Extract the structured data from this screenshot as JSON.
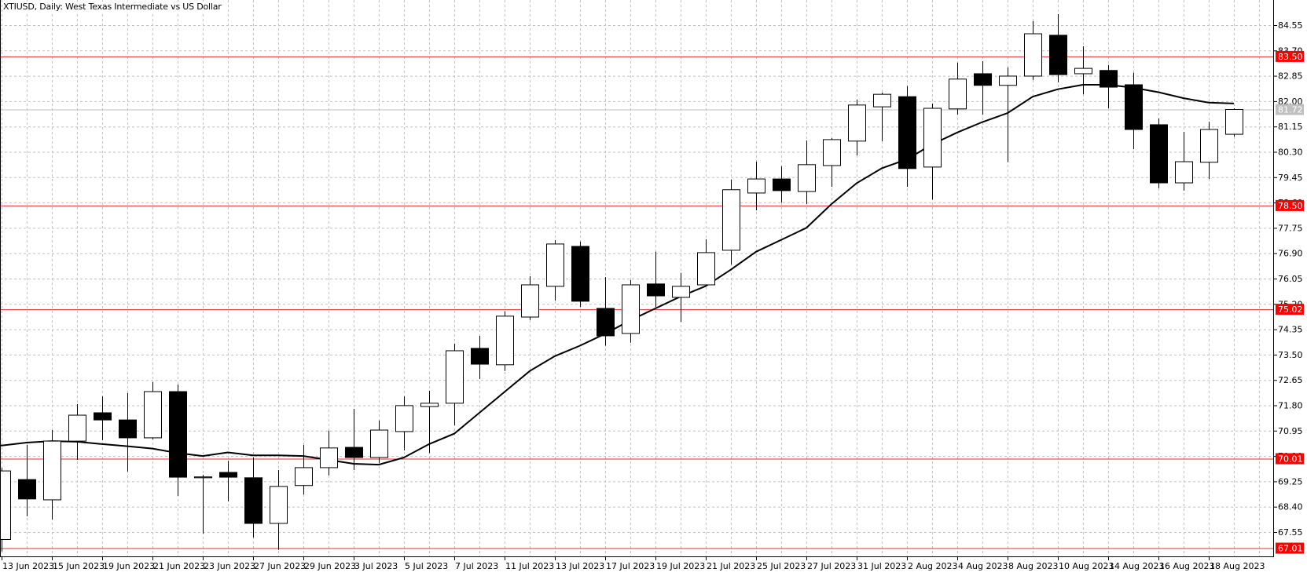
{
  "window": {
    "title": "XTIUSD, Daily:  West Texas Intermediate vs US Dollar"
  },
  "colors": {
    "background": "#ffffff",
    "grid": "#c0c0c0",
    "candle_up_fill": "#ffffff",
    "candle_down_fill": "#000000",
    "candle_outline": "#000000",
    "moving_average": "#000000",
    "level_line": "#e03030",
    "level_label_bg": "#ff0000",
    "level_label_text": "#ffffff",
    "current_price_line": "#c0c0c0",
    "current_price_label_bg": "#c0c0c0",
    "axis": "#000000"
  },
  "price_axis": {
    "ticks": [
      "84.55",
      "83.70",
      "82.85",
      "82.00",
      "81.15",
      "80.30",
      "79.45",
      "78.60",
      "77.75",
      "76.90",
      "76.05",
      "75.20",
      "74.35",
      "73.50",
      "72.65",
      "71.80",
      "70.95",
      "70.10",
      "69.25",
      "68.40",
      "67.55"
    ]
  },
  "time_axis": {
    "labels": [
      {
        "label": "13 Jun 2023",
        "bar": 0
      },
      {
        "label": "15 Jun 2023",
        "bar": 2
      },
      {
        "label": "19 Jun 2023",
        "bar": 4
      },
      {
        "label": "21 Jun 2023",
        "bar": 6
      },
      {
        "label": "23 Jun 2023",
        "bar": 8
      },
      {
        "label": "27 Jun 2023",
        "bar": 10
      },
      {
        "label": "29 Jun 2023",
        "bar": 12
      },
      {
        "label": "3 Jul 2023",
        "bar": 14
      },
      {
        "label": "5 Jul 2023",
        "bar": 16
      },
      {
        "label": "7 Jul 2023",
        "bar": 18
      },
      {
        "label": "11 Jul 2023",
        "bar": 20
      },
      {
        "label": "13 Jul 2023",
        "bar": 22
      },
      {
        "label": "17 Jul 2023",
        "bar": 24
      },
      {
        "label": "19 Jul 2023",
        "bar": 26
      },
      {
        "label": "21 Jul 2023",
        "bar": 28
      },
      {
        "label": "25 Jul 2023",
        "bar": 30
      },
      {
        "label": "27 Jul 2023",
        "bar": 32
      },
      {
        "label": "31 Jul 2023",
        "bar": 34
      },
      {
        "label": "2 Aug 2023",
        "bar": 36
      },
      {
        "label": "4 Aug 2023",
        "bar": 38
      },
      {
        "label": "8 Aug 2023",
        "bar": 40
      },
      {
        "label": "10 Aug 2023",
        "bar": 42
      },
      {
        "label": "14 Aug 2023",
        "bar": 44
      },
      {
        "label": "16 Aug 2023",
        "bar": 46
      },
      {
        "label": "18 Aug 2023",
        "bar": 48
      }
    ]
  },
  "levels": [
    {
      "price": 83.5,
      "label": "83.50",
      "kind": "resistance"
    },
    {
      "price": 78.5,
      "label": "78.50",
      "kind": "level"
    },
    {
      "price": 75.02,
      "label": "75.02",
      "kind": "level"
    },
    {
      "price": 70.01,
      "label": "70.01",
      "kind": "level"
    },
    {
      "price": 67.01,
      "label": "67.01",
      "kind": "support"
    }
  ],
  "current_price": {
    "price": 81.72,
    "label": "81.72"
  },
  "chart_data": {
    "type": "candlestick",
    "title": "XTIUSD, Daily:  West Texas Intermediate vs US Dollar",
    "symbol": "XTIUSD",
    "timeframe": "Daily",
    "xlabel": "",
    "ylabel": "",
    "ylim": [
      66.7,
      85.3
    ],
    "grid": true,
    "y_ticks": [
      84.55,
      83.7,
      82.85,
      82.0,
      81.15,
      80.3,
      79.45,
      78.6,
      77.75,
      76.9,
      76.05,
      75.2,
      74.35,
      73.5,
      72.65,
      71.8,
      70.95,
      70.1,
      69.25,
      68.4,
      67.55
    ],
    "horizontal_levels": [
      83.5,
      78.5,
      75.02,
      70.01,
      67.01
    ],
    "current_price": 81.72,
    "candles": [
      {
        "date": "13 Jun 2023",
        "o": 67.3,
        "h": 69.7,
        "l": 66.9,
        "c": 69.6
      },
      {
        "date": "14 Jun 2023",
        "o": 69.31,
        "h": 70.47,
        "l": 68.08,
        "c": 68.66
      },
      {
        "date": "15 Jun 2023",
        "o": 68.63,
        "h": 70.97,
        "l": 67.97,
        "c": 70.6
      },
      {
        "date": "16 Jun 2023",
        "o": 70.6,
        "h": 71.84,
        "l": 69.97,
        "c": 71.47
      },
      {
        "date": "19 Jun 2023",
        "o": 71.55,
        "h": 72.1,
        "l": 70.63,
        "c": 71.31
      },
      {
        "date": "20 Jun 2023",
        "o": 71.31,
        "h": 72.21,
        "l": 69.58,
        "c": 70.71
      },
      {
        "date": "21 Jun 2023",
        "o": 70.71,
        "h": 72.58,
        "l": 70.66,
        "c": 72.26
      },
      {
        "date": "22 Jun 2023",
        "o": 72.26,
        "h": 72.5,
        "l": 68.76,
        "c": 69.39
      },
      {
        "date": "23 Jun 2023",
        "o": 69.37,
        "h": 69.47,
        "l": 67.5,
        "c": 69.4
      },
      {
        "date": "26 Jun 2023",
        "o": 69.55,
        "h": 69.94,
        "l": 68.58,
        "c": 69.39
      },
      {
        "date": "27 Jun 2023",
        "o": 69.37,
        "h": 70.05,
        "l": 67.37,
        "c": 67.84
      },
      {
        "date": "28 Jun 2023",
        "o": 67.84,
        "h": 69.63,
        "l": 66.95,
        "c": 69.08
      },
      {
        "date": "29 Jun 2023",
        "o": 69.11,
        "h": 70.47,
        "l": 68.81,
        "c": 69.71
      },
      {
        "date": "30 Jun 2023",
        "o": 69.71,
        "h": 70.95,
        "l": 69.45,
        "c": 70.37
      },
      {
        "date": "3 Jul 2023",
        "o": 70.39,
        "h": 71.68,
        "l": 69.63,
        "c": 70.05
      },
      {
        "date": "4 Jul 2023",
        "o": 70.05,
        "h": 71.29,
        "l": 69.87,
        "c": 70.97
      },
      {
        "date": "5 Jul 2023",
        "o": 70.92,
        "h": 72.1,
        "l": 70.29,
        "c": 71.79
      },
      {
        "date": "6 Jul 2023",
        "o": 71.76,
        "h": 72.29,
        "l": 70.2,
        "c": 71.87
      },
      {
        "date": "7 Jul 2023",
        "o": 71.87,
        "h": 73.87,
        "l": 71.13,
        "c": 73.63
      },
      {
        "date": "10 Jul 2023",
        "o": 73.71,
        "h": 74.13,
        "l": 72.68,
        "c": 73.18
      },
      {
        "date": "11 Jul 2023",
        "o": 73.16,
        "h": 74.95,
        "l": 72.95,
        "c": 74.79
      },
      {
        "date": "12 Jul 2023",
        "o": 74.76,
        "h": 76.13,
        "l": 74.66,
        "c": 75.84
      },
      {
        "date": "13 Jul 2023",
        "o": 75.79,
        "h": 77.34,
        "l": 75.31,
        "c": 77.21
      },
      {
        "date": "14 Jul 2023",
        "o": 77.13,
        "h": 77.29,
        "l": 75.1,
        "c": 75.29
      },
      {
        "date": "17 Jul 2023",
        "o": 75.05,
        "h": 76.1,
        "l": 73.8,
        "c": 74.13
      },
      {
        "date": "18 Jul 2023",
        "o": 74.21,
        "h": 76.0,
        "l": 73.9,
        "c": 75.84
      },
      {
        "date": "19 Jul 2023",
        "o": 75.87,
        "h": 76.95,
        "l": 75.1,
        "c": 75.47
      },
      {
        "date": "20 Jul 2023",
        "o": 75.42,
        "h": 76.24,
        "l": 74.6,
        "c": 75.79
      },
      {
        "date": "21 Jul 2023",
        "o": 75.84,
        "h": 77.37,
        "l": 75.79,
        "c": 76.92
      },
      {
        "date": "24 Jul 2023",
        "o": 77.0,
        "h": 79.37,
        "l": 76.52,
        "c": 79.03
      },
      {
        "date": "25 Jul 2023",
        "o": 78.92,
        "h": 79.97,
        "l": 78.34,
        "c": 79.39
      },
      {
        "date": "26 Jul 2023",
        "o": 79.39,
        "h": 79.81,
        "l": 78.6,
        "c": 79.0
      },
      {
        "date": "27 Jul 2023",
        "o": 78.97,
        "h": 80.68,
        "l": 78.55,
        "c": 79.87
      },
      {
        "date": "28 Jul 2023",
        "o": 79.84,
        "h": 80.76,
        "l": 79.13,
        "c": 80.71
      },
      {
        "date": "31 Jul 2023",
        "o": 80.66,
        "h": 82.05,
        "l": 80.18,
        "c": 81.87
      },
      {
        "date": "1 Aug 2023",
        "o": 81.81,
        "h": 82.29,
        "l": 80.66,
        "c": 82.23
      },
      {
        "date": "2 Aug 2023",
        "o": 82.15,
        "h": 82.5,
        "l": 79.13,
        "c": 79.74
      },
      {
        "date": "3 Aug 2023",
        "o": 79.79,
        "h": 81.92,
        "l": 78.7,
        "c": 81.76
      },
      {
        "date": "4 Aug 2023",
        "o": 81.74,
        "h": 83.29,
        "l": 81.55,
        "c": 82.74
      },
      {
        "date": "7 Aug 2023",
        "o": 82.92,
        "h": 83.34,
        "l": 81.55,
        "c": 82.53
      },
      {
        "date": "8 Aug 2023",
        "o": 82.53,
        "h": 83.13,
        "l": 79.95,
        "c": 82.84
      },
      {
        "date": "9 Aug 2023",
        "o": 82.84,
        "h": 84.68,
        "l": 82.71,
        "c": 84.26
      },
      {
        "date": "10 Aug 2023",
        "o": 84.21,
        "h": 84.92,
        "l": 82.63,
        "c": 82.89
      },
      {
        "date": "11 Aug 2023",
        "o": 82.92,
        "h": 83.84,
        "l": 82.23,
        "c": 83.1
      },
      {
        "date": "14 Aug 2023",
        "o": 83.03,
        "h": 83.21,
        "l": 81.76,
        "c": 82.47
      },
      {
        "date": "15 Aug 2023",
        "o": 82.55,
        "h": 82.95,
        "l": 80.39,
        "c": 81.05
      },
      {
        "date": "16 Aug 2023",
        "o": 81.21,
        "h": 81.42,
        "l": 79.08,
        "c": 79.26
      },
      {
        "date": "17 Aug 2023",
        "o": 79.26,
        "h": 80.97,
        "l": 79.0,
        "c": 79.97
      },
      {
        "date": "18 Aug 2023",
        "o": 79.95,
        "h": 81.31,
        "l": 79.39,
        "c": 81.05
      },
      {
        "date": "21 Aug 2023",
        "o": 80.89,
        "h": 81.76,
        "l": 80.81,
        "c": 81.72
      }
    ],
    "moving_average": {
      "name": "MA",
      "points": [
        [
          0,
          70.45
        ],
        [
          1,
          70.55
        ],
        [
          2,
          70.6
        ],
        [
          3,
          70.58
        ],
        [
          4,
          70.5
        ],
        [
          5,
          70.43
        ],
        [
          6,
          70.35
        ],
        [
          7,
          70.2
        ],
        [
          8,
          70.1
        ],
        [
          9,
          70.22
        ],
        [
          10,
          70.12
        ],
        [
          11,
          70.12
        ],
        [
          12,
          70.1
        ],
        [
          13,
          69.97
        ],
        [
          14,
          69.84
        ],
        [
          15,
          69.81
        ],
        [
          16,
          70.05
        ],
        [
          17,
          70.5
        ],
        [
          18,
          70.85
        ],
        [
          19,
          71.55
        ],
        [
          20,
          72.25
        ],
        [
          21,
          72.95
        ],
        [
          22,
          73.45
        ],
        [
          23,
          73.8
        ],
        [
          24,
          74.2
        ],
        [
          25,
          74.65
        ],
        [
          26,
          75.05
        ],
        [
          27,
          75.45
        ],
        [
          28,
          75.8
        ],
        [
          29,
          76.35
        ],
        [
          30,
          76.95
        ],
        [
          31,
          77.35
        ],
        [
          32,
          77.75
        ],
        [
          33,
          78.55
        ],
        [
          34,
          79.25
        ],
        [
          35,
          79.75
        ],
        [
          36,
          80.05
        ],
        [
          37,
          80.55
        ],
        [
          38,
          80.95
        ],
        [
          39,
          81.3
        ],
        [
          40,
          81.6
        ],
        [
          41,
          82.15
        ],
        [
          42,
          82.4
        ],
        [
          43,
          82.55
        ],
        [
          44,
          82.55
        ],
        [
          45,
          82.45
        ],
        [
          46,
          82.3
        ],
        [
          47,
          82.1
        ],
        [
          48,
          81.95
        ],
        [
          49,
          81.92
        ]
      ]
    }
  }
}
